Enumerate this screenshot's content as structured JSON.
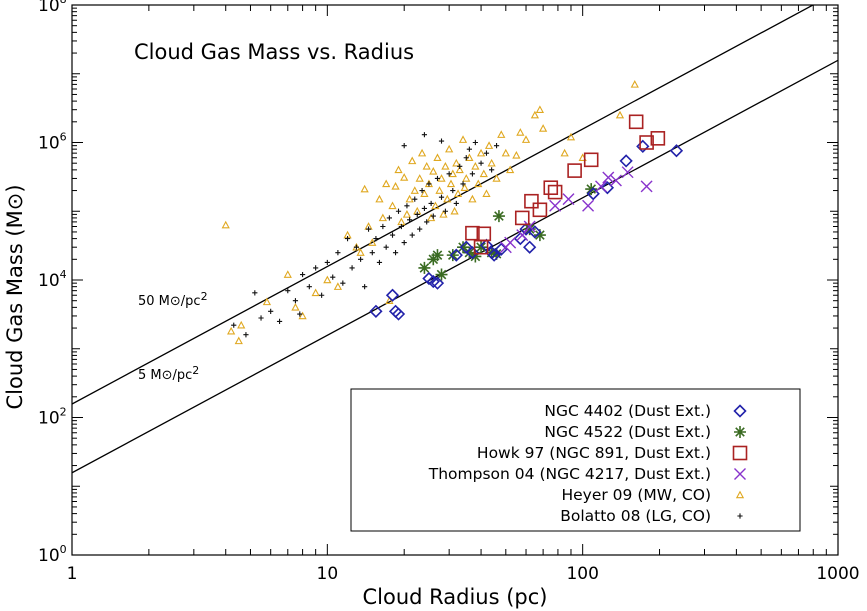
{
  "chart_data": {
    "type": "scatter",
    "title": "Cloud Gas Mass vs. Radius",
    "xlabel": "Cloud Radius (pc)",
    "ylabel": "Cloud Gas Mass (M⊙)",
    "x_scale": "log",
    "y_scale": "log",
    "xlim": [
      1,
      1000
    ],
    "ylim": [
      1,
      100000000
    ],
    "x_ticks": [
      {
        "value": 1,
        "label": "1"
      },
      {
        "value": 10,
        "label": "10"
      },
      {
        "value": 100,
        "label": "100"
      },
      {
        "value": 1000,
        "label": "1000"
      }
    ],
    "y_ticks": [
      {
        "value": 1,
        "base": "10",
        "exp": "0"
      },
      {
        "value": 100,
        "base": "10",
        "exp": "2"
      },
      {
        "value": 10000,
        "base": "10",
        "exp": "4"
      },
      {
        "value": 1000000,
        "base": "10",
        "exp": "6"
      },
      {
        "value": 100000000,
        "base": "10",
        "exp": "8"
      }
    ],
    "grid": false,
    "legend_position": "bottom-right",
    "reference_lines": [
      {
        "label_main": "50 M⊙/pc",
        "label_exp": "2",
        "surface_density": 50,
        "points": [
          [
            1,
            157
          ],
          [
            1000,
            157000000
          ]
        ]
      },
      {
        "label_main": "5 M⊙/pc",
        "label_exp": "2",
        "surface_density": 5,
        "points": [
          [
            1,
            15.7
          ],
          [
            1000,
            15700000
          ]
        ]
      }
    ],
    "series": [
      {
        "name": "NGC 4402 (Dust Ext.)",
        "marker": "diamond",
        "color": "#2222aa",
        "points": [
          [
            15.5,
            3500
          ],
          [
            18,
            6000
          ],
          [
            18.5,
            3500
          ],
          [
            19,
            3200
          ],
          [
            25,
            10500
          ],
          [
            26,
            9500
          ],
          [
            27,
            9000
          ],
          [
            32,
            23000
          ],
          [
            35,
            30000
          ],
          [
            37,
            25000
          ],
          [
            42,
            32000
          ],
          [
            44,
            25000
          ],
          [
            45,
            23000
          ],
          [
            48,
            28000
          ],
          [
            57,
            40000
          ],
          [
            60,
            55000
          ],
          [
            62,
            30000
          ],
          [
            65,
            50000
          ],
          [
            110,
            180000
          ],
          [
            125,
            220000
          ],
          [
            148,
            540000
          ],
          [
            172,
            880000
          ],
          [
            233,
            760000
          ]
        ]
      },
      {
        "name": "NGC 4522 (Dust Ext.)",
        "marker": "asterisk",
        "color": "#3a6b22",
        "points": [
          [
            24,
            15000
          ],
          [
            26,
            20000
          ],
          [
            27,
            23000
          ],
          [
            28,
            12000
          ],
          [
            31,
            23000
          ],
          [
            34,
            30000
          ],
          [
            36,
            25000
          ],
          [
            38,
            22000
          ],
          [
            40,
            30000
          ],
          [
            44,
            25000
          ],
          [
            46,
            24000
          ],
          [
            47,
            85000
          ],
          [
            62,
            55000
          ],
          [
            68,
            45000
          ],
          [
            108,
            210000
          ]
        ]
      },
      {
        "name": "Howk 97 (NGC 891, Dust Ext.)",
        "marker": "square",
        "color": "#aa2222",
        "points": [
          [
            37,
            48000
          ],
          [
            40,
            30000
          ],
          [
            41,
            47000
          ],
          [
            58,
            80000
          ],
          [
            63,
            140000
          ],
          [
            68,
            105000
          ],
          [
            75,
            220000
          ],
          [
            78,
            190000
          ],
          [
            93,
            390000
          ],
          [
            108,
            560000
          ],
          [
            162,
            2000000
          ],
          [
            178,
            1000000
          ],
          [
            197,
            1150000
          ]
        ]
      },
      {
        "name": "Thompson 04 (NGC 4217, Dust Ext.)",
        "marker": "x",
        "color": "#8833cc",
        "points": [
          [
            50,
            30000
          ],
          [
            52,
            35000
          ],
          [
            58,
            45000
          ],
          [
            62,
            60000
          ],
          [
            78,
            120000
          ],
          [
            88,
            150000
          ],
          [
            105,
            120000
          ],
          [
            118,
            230000
          ],
          [
            126,
            310000
          ],
          [
            135,
            280000
          ],
          [
            150,
            370000
          ],
          [
            178,
            230000
          ]
        ]
      },
      {
        "name": "Heyer 09 (MW, CO)",
        "marker": "triangle",
        "color": "#e0a820",
        "points": [
          [
            4,
            63000
          ],
          [
            4.2,
            1800
          ],
          [
            4.5,
            1300
          ],
          [
            4.6,
            2200
          ],
          [
            5.8,
            4800
          ],
          [
            7,
            12000
          ],
          [
            7.5,
            4000
          ],
          [
            8,
            3000
          ],
          [
            9,
            6500
          ],
          [
            10,
            10000
          ],
          [
            11,
            8000
          ],
          [
            12,
            45000
          ],
          [
            13,
            30000
          ],
          [
            13.5,
            25000
          ],
          [
            14,
            210000
          ],
          [
            14.5,
            60000
          ],
          [
            15,
            35000
          ],
          [
            16,
            150000
          ],
          [
            16.5,
            80000
          ],
          [
            17,
            250000
          ],
          [
            17.5,
            5000
          ],
          [
            18,
            120000
          ],
          [
            18.5,
            230000
          ],
          [
            19,
            400000
          ],
          [
            19.5,
            70000
          ],
          [
            20,
            310000
          ],
          [
            20.5,
            90000
          ],
          [
            21,
            150000
          ],
          [
            21.5,
            540000
          ],
          [
            22,
            200000
          ],
          [
            22.5,
            100000
          ],
          [
            23,
            300000
          ],
          [
            23.5,
            700000
          ],
          [
            24,
            180000
          ],
          [
            24.5,
            450000
          ],
          [
            25,
            250000
          ],
          [
            25.5,
            80000
          ],
          [
            26,
            380000
          ],
          [
            26.5,
            120000
          ],
          [
            27,
            600000
          ],
          [
            27.5,
            200000
          ],
          [
            28,
            300000
          ],
          [
            28.5,
            90000
          ],
          [
            29,
            450000
          ],
          [
            29.5,
            150000
          ],
          [
            30,
            800000
          ],
          [
            30.5,
            250000
          ],
          [
            31,
            350000
          ],
          [
            31.5,
            100000
          ],
          [
            32,
            500000
          ],
          [
            32.5,
            180000
          ],
          [
            33,
            400000
          ],
          [
            34,
            1100000
          ],
          [
            34.5,
            220000
          ],
          [
            35,
            300000
          ],
          [
            36,
            600000
          ],
          [
            37,
            150000
          ],
          [
            38,
            450000
          ],
          [
            39,
            250000
          ],
          [
            40,
            700000
          ],
          [
            41,
            350000
          ],
          [
            42,
            180000
          ],
          [
            43,
            900000
          ],
          [
            44,
            500000
          ],
          [
            46,
            300000
          ],
          [
            48,
            1300000
          ],
          [
            50,
            700000
          ],
          [
            52,
            400000
          ],
          [
            55,
            650000
          ],
          [
            57,
            1400000
          ],
          [
            60,
            1100000
          ],
          [
            65,
            2500000
          ],
          [
            68,
            3000000
          ],
          [
            70,
            1600000
          ],
          [
            85,
            700000
          ],
          [
            90,
            1200000
          ],
          [
            100,
            600000
          ],
          [
            140,
            2500000
          ],
          [
            160,
            7000000
          ]
        ]
      },
      {
        "name": "Bolatto 08 (LG, CO)",
        "marker": "plus",
        "color": "#111111",
        "points": [
          [
            4.3,
            2200
          ],
          [
            4.8,
            1600
          ],
          [
            5.2,
            6500
          ],
          [
            5.5,
            2800
          ],
          [
            6,
            3500
          ],
          [
            6.5,
            2500
          ],
          [
            7,
            7000
          ],
          [
            7.5,
            5000
          ],
          [
            7.8,
            3200
          ],
          [
            8,
            12000
          ],
          [
            8.5,
            8000
          ],
          [
            9,
            15000
          ],
          [
            9.5,
            6000
          ],
          [
            10,
            18000
          ],
          [
            10.5,
            11000
          ],
          [
            11,
            25000
          ],
          [
            11.5,
            9000
          ],
          [
            12,
            40000
          ],
          [
            12.5,
            15000
          ],
          [
            13,
            30000
          ],
          [
            13.5,
            20000
          ],
          [
            14,
            8000
          ],
          [
            14.5,
            55000
          ],
          [
            15,
            25000
          ],
          [
            15.5,
            40000
          ],
          [
            16,
            18000
          ],
          [
            16.5,
            60000
          ],
          [
            17,
            30000
          ],
          [
            17.5,
            80000
          ],
          [
            18,
            45000
          ],
          [
            18.5,
            25000
          ],
          [
            19,
            100000
          ],
          [
            19.5,
            60000
          ],
          [
            20,
            35000
          ],
          [
            20.5,
            120000
          ],
          [
            21,
            75000
          ],
          [
            21.5,
            45000
          ],
          [
            22,
            150000
          ],
          [
            22.5,
            90000
          ],
          [
            23,
            55000
          ],
          [
            23.5,
            200000
          ],
          [
            24,
            110000
          ],
          [
            24.5,
            70000
          ],
          [
            25,
            250000
          ],
          [
            25.5,
            130000
          ],
          [
            26,
            85000
          ],
          [
            27,
            300000
          ],
          [
            28,
            160000
          ],
          [
            29,
            100000
          ],
          [
            30,
            350000
          ],
          [
            31,
            200000
          ],
          [
            32,
            130000
          ],
          [
            33,
            450000
          ],
          [
            34,
            250000
          ],
          [
            35,
            600000
          ],
          [
            36,
            800000
          ],
          [
            37,
            350000
          ],
          [
            38,
            1000000
          ],
          [
            40,
            500000
          ],
          [
            42,
            700000
          ],
          [
            44,
            400000
          ],
          [
            46,
            900000
          ],
          [
            24,
            1300000
          ],
          [
            28,
            1050000
          ],
          [
            20,
            900000
          ]
        ]
      }
    ]
  }
}
